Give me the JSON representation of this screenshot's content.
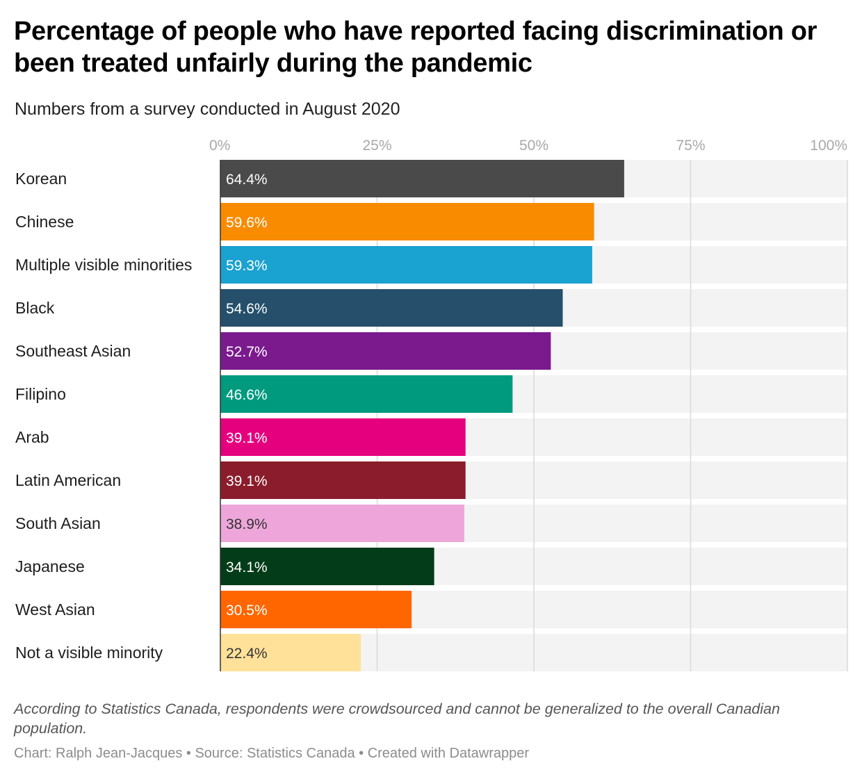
{
  "title": "Percentage of people who have reported facing discrimination or been treated unfairly during the pandemic",
  "subtitle": "Numbers from a survey conducted in August 2020",
  "notes": "According to Statistics Canada, respondents were crowdsourced and cannot be generalized to the overall Canadian population.",
  "source": "Chart: Ralph Jean-Jacques • Source: Statistics Canada • Created with Datawrapper",
  "chart_data": {
    "type": "bar",
    "orientation": "horizontal",
    "xlim": [
      0,
      100
    ],
    "grid": true,
    "ticks": [
      "0%",
      "25%",
      "50%",
      "75%",
      "100%"
    ],
    "tick_values": [
      0,
      25,
      50,
      75,
      100
    ],
    "categories": [
      "Korean",
      "Chinese",
      "Multiple visible minorities",
      "Black",
      "Southeast Asian",
      "Filipino",
      "Arab",
      "Latin American",
      "South Asian",
      "Japanese",
      "West Asian",
      "Not a visible minority"
    ],
    "values": [
      64.4,
      59.6,
      59.3,
      54.6,
      52.7,
      46.6,
      39.1,
      39.1,
      38.9,
      34.1,
      30.5,
      22.4
    ],
    "value_labels": [
      "64.4%",
      "59.6%",
      "59.3%",
      "54.6%",
      "52.7%",
      "46.6%",
      "39.1%",
      "39.1%",
      "38.9%",
      "34.1%",
      "30.5%",
      "22.4%"
    ],
    "colors": [
      "#4a4a4a",
      "#f98b00",
      "#1aa2d0",
      "#254f6a",
      "#7a1a8d",
      "#009a7e",
      "#e5007d",
      "#8b1c2b",
      "#eea6da",
      "#033c18",
      "#ff6600",
      "#ffe19a"
    ],
    "label_colors": [
      "#ffffff",
      "#ffffff",
      "#ffffff",
      "#ffffff",
      "#ffffff",
      "#ffffff",
      "#ffffff",
      "#ffffff",
      "#333333",
      "#ffffff",
      "#ffffff",
      "#333333"
    ],
    "track_color": "#f3f3f3",
    "grid_color": "#d9d9d9"
  }
}
